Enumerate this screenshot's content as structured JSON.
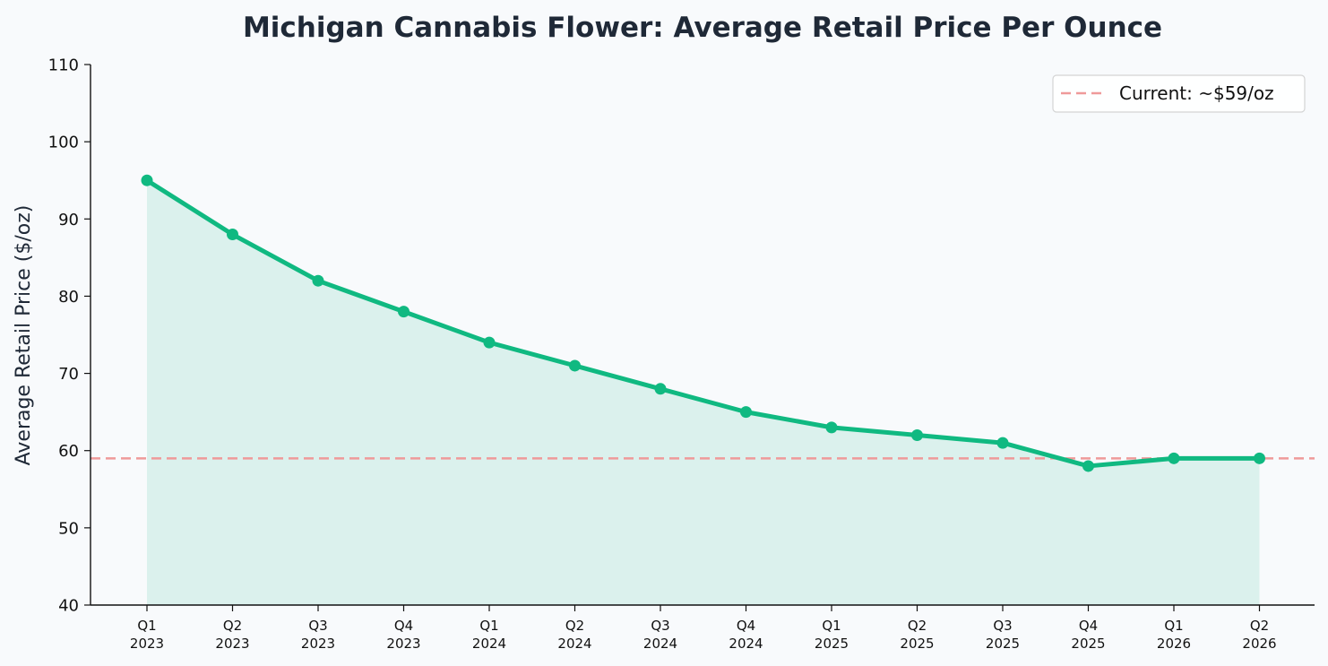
{
  "chart_data": {
    "type": "line",
    "title": "Michigan Cannabis Flower: Average Retail Price Per Ounce",
    "xlabel": "",
    "ylabel": "Average Retail Price ($/oz)",
    "categories": [
      [
        "Q1",
        "2023"
      ],
      [
        "Q2",
        "2023"
      ],
      [
        "Q3",
        "2023"
      ],
      [
        "Q4",
        "2023"
      ],
      [
        "Q1",
        "2024"
      ],
      [
        "Q2",
        "2024"
      ],
      [
        "Q3",
        "2024"
      ],
      [
        "Q4",
        "2024"
      ],
      [
        "Q1",
        "2025"
      ],
      [
        "Q2",
        "2025"
      ],
      [
        "Q3",
        "2025"
      ],
      [
        "Q4",
        "2025"
      ],
      [
        "Q1",
        "2026"
      ],
      [
        "Q2",
        "2026"
      ]
    ],
    "series": [
      {
        "values": [
          95,
          88,
          82,
          78,
          74,
          71,
          68,
          65,
          63,
          62,
          61,
          58,
          59,
          59
        ],
        "color": "#10b981",
        "fill_under": true
      }
    ],
    "reference_line": {
      "value": 59,
      "label": "Current: ~$59/oz",
      "color": "#ef9a9a",
      "style": "dashed"
    },
    "ylim": [
      40,
      110
    ],
    "yticks": [
      40,
      50,
      60,
      70,
      80,
      90,
      100,
      110
    ],
    "grid": false,
    "legend_position": "top-right",
    "background": "#f8fafc"
  }
}
